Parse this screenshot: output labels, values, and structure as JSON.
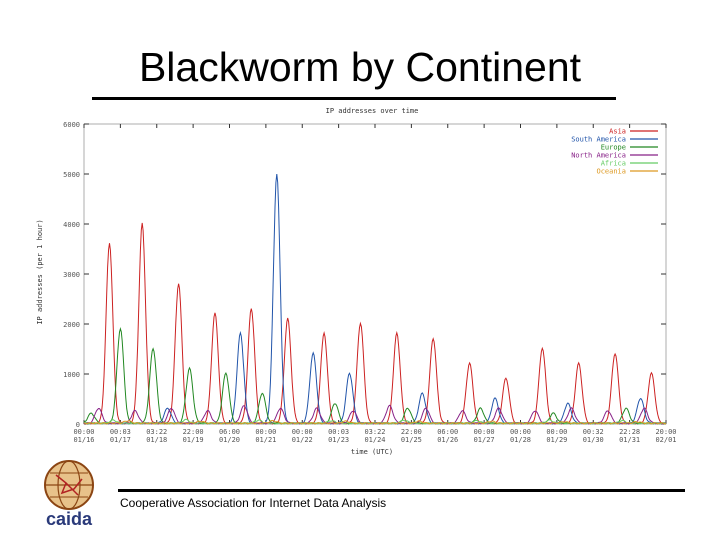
{
  "slide": {
    "title": "Blackworm by Continent",
    "footer": "Cooperative Association for Internet Data Analysis",
    "logo_text": "caida"
  },
  "chart_data": {
    "type": "line",
    "title": "IP addresses over time",
    "xlabel": "time (UTC)",
    "ylabel": "IP addresses (per 1 hour)",
    "ylim": [
      0,
      6000
    ],
    "yticks": [
      "0",
      "1000",
      "2000",
      "3000",
      "4000",
      "5000",
      "6000"
    ],
    "xticks": [
      {
        "time": "00:00",
        "date": "01/16"
      },
      {
        "time": "00:03",
        "date": "01/17"
      },
      {
        "time": "03:22",
        "date": "01/18"
      },
      {
        "time": "22:00",
        "date": "01/19"
      },
      {
        "time": "06:00",
        "date": "01/20"
      },
      {
        "time": "00:00",
        "date": "01/21"
      },
      {
        "time": "00:00",
        "date": "01/22"
      },
      {
        "time": "00:03",
        "date": "01/23"
      },
      {
        "time": "03:22",
        "date": "01/24"
      },
      {
        "time": "22:00",
        "date": "01/25"
      },
      {
        "time": "06:00",
        "date": "01/26"
      },
      {
        "time": "00:00",
        "date": "01/27"
      },
      {
        "time": "00:00",
        "date": "01/28"
      },
      {
        "time": "00:00",
        "date": "01/29"
      },
      {
        "time": "00:32",
        "date": "01/30"
      },
      {
        "time": "22:28",
        "date": "01/31"
      },
      {
        "time": "20:00",
        "date": "02/01"
      }
    ],
    "series": [
      {
        "name": "Asia",
        "color": "#cc2222",
        "peaks": [
          {
            "day": 0.7,
            "value": 3600
          },
          {
            "day": 1.6,
            "value": 4000
          },
          {
            "day": 2.6,
            "value": 2800
          },
          {
            "day": 3.6,
            "value": 2200
          },
          {
            "day": 4.6,
            "value": 2300
          },
          {
            "day": 5.6,
            "value": 2100
          },
          {
            "day": 6.6,
            "value": 1800
          },
          {
            "day": 7.6,
            "value": 2000
          },
          {
            "day": 8.6,
            "value": 1800
          },
          {
            "day": 9.6,
            "value": 1700
          },
          {
            "day": 10.6,
            "value": 1200
          },
          {
            "day": 11.6,
            "value": 900
          },
          {
            "day": 12.6,
            "value": 1500
          },
          {
            "day": 13.6,
            "value": 1200
          },
          {
            "day": 14.6,
            "value": 1400
          },
          {
            "day": 15.6,
            "value": 1000
          }
        ]
      },
      {
        "name": "South America",
        "color": "#2255aa",
        "peaks": [
          {
            "day": 5.3,
            "value": 5000
          },
          {
            "day": 4.3,
            "value": 1800
          },
          {
            "day": 6.3,
            "value": 1400
          },
          {
            "day": 7.3,
            "value": 1000
          },
          {
            "day": 2.3,
            "value": 300
          },
          {
            "day": 9.3,
            "value": 600
          },
          {
            "day": 11.3,
            "value": 500
          },
          {
            "day": 13.3,
            "value": 400
          },
          {
            "day": 15.3,
            "value": 500
          }
        ]
      },
      {
        "name": "Europe",
        "color": "#228822",
        "peaks": [
          {
            "day": 1.0,
            "value": 1900
          },
          {
            "day": 1.9,
            "value": 1500
          },
          {
            "day": 2.9,
            "value": 1100
          },
          {
            "day": 3.9,
            "value": 1000
          },
          {
            "day": 4.9,
            "value": 600
          },
          {
            "day": 0.2,
            "value": 200
          },
          {
            "day": 6.9,
            "value": 400
          },
          {
            "day": 8.9,
            "value": 300
          },
          {
            "day": 10.9,
            "value": 300
          },
          {
            "day": 12.9,
            "value": 200
          },
          {
            "day": 14.9,
            "value": 300
          }
        ]
      },
      {
        "name": "North America",
        "color": "#882288",
        "peaks": [
          {
            "day": 0.4,
            "value": 300
          },
          {
            "day": 1.4,
            "value": 250
          },
          {
            "day": 2.4,
            "value": 300
          },
          {
            "day": 3.4,
            "value": 250
          },
          {
            "day": 4.4,
            "value": 350
          },
          {
            "day": 5.4,
            "value": 300
          },
          {
            "day": 6.4,
            "value": 300
          },
          {
            "day": 7.4,
            "value": 250
          },
          {
            "day": 8.4,
            "value": 350
          },
          {
            "day": 9.4,
            "value": 300
          },
          {
            "day": 10.4,
            "value": 250
          },
          {
            "day": 11.4,
            "value": 300
          },
          {
            "day": 12.4,
            "value": 250
          },
          {
            "day": 13.4,
            "value": 300
          },
          {
            "day": 14.4,
            "value": 250
          },
          {
            "day": 15.4,
            "value": 300
          }
        ]
      },
      {
        "name": "Africa",
        "color": "#66cc66",
        "peaks": [
          {
            "day": 0.8,
            "value": 60
          },
          {
            "day": 2.8,
            "value": 70
          },
          {
            "day": 4.8,
            "value": 60
          },
          {
            "day": 6.8,
            "value": 50
          },
          {
            "day": 8.8,
            "value": 60
          },
          {
            "day": 10.8,
            "value": 50
          },
          {
            "day": 12.8,
            "value": 60
          },
          {
            "day": 14.8,
            "value": 50
          }
        ]
      },
      {
        "name": "Oceania",
        "color": "#dd9922",
        "peaks": [
          {
            "day": 1.2,
            "value": 50
          },
          {
            "day": 3.2,
            "value": 40
          },
          {
            "day": 5.2,
            "value": 50
          },
          {
            "day": 7.2,
            "value": 40
          },
          {
            "day": 9.2,
            "value": 40
          },
          {
            "day": 11.2,
            "value": 40
          },
          {
            "day": 13.2,
            "value": 30
          },
          {
            "day": 15.2,
            "value": 30
          }
        ]
      }
    ]
  }
}
